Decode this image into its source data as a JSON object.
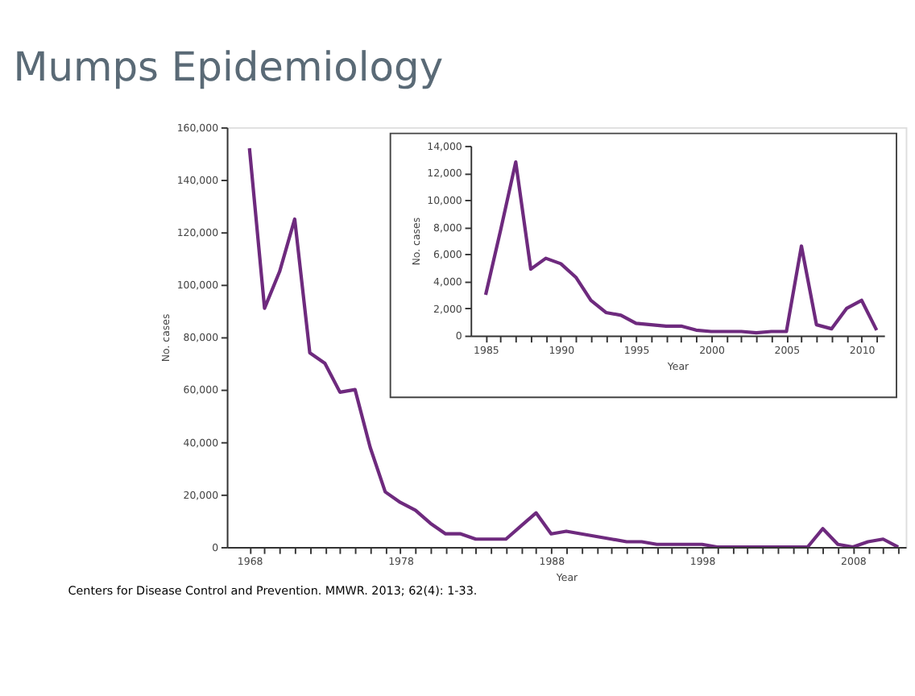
{
  "chart_data": [
    {
      "type": "line",
      "title": "Mumps Epidemiology",
      "xlabel": "Year",
      "ylabel": "No. cases",
      "annotations": [
        "Centers for Disease Control and Prevention. MMWR. 2013; 62(4): 1-33."
      ],
      "x": [
        1968,
        1969,
        1970,
        1971,
        1972,
        1973,
        1974,
        1975,
        1976,
        1977,
        1978,
        1979,
        1980,
        1981,
        1982,
        1983,
        1984,
        1985,
        1986,
        1987,
        1988,
        1989,
        1990,
        1991,
        1992,
        1993,
        1994,
        1995,
        1996,
        1997,
        1998,
        1999,
        2000,
        2001,
        2002,
        2003,
        2004,
        2005,
        2006,
        2007,
        2008,
        2009,
        2010,
        2011
      ],
      "series": [
        {
          "color": "#6e2a7e",
          "values": [
            152000,
            91000,
            105000,
            125000,
            74000,
            70000,
            59000,
            60000,
            38000,
            21000,
            17000,
            14000,
            9000,
            5000,
            5000,
            3000,
            3000,
            3000,
            8000,
            13000,
            5000,
            6000,
            5000,
            4000,
            3000,
            2000,
            2000,
            1000,
            1000,
            1000,
            1000,
            0,
            0,
            0,
            0,
            0,
            0,
            0,
            7000,
            1000,
            0,
            2000,
            3000,
            0
          ]
        }
      ],
      "xlim": [
        1966.5,
        2011.5
      ],
      "ylim": [
        0,
        160000
      ],
      "xticks": [
        1968,
        {
          "value": 1969,
          "label": null
        },
        {
          "value": 1970,
          "label": null
        },
        {
          "value": 1971,
          "label": null
        },
        {
          "value": 1972,
          "label": null
        },
        {
          "value": 1973,
          "label": null
        },
        {
          "value": 1974,
          "label": null
        },
        {
          "value": 1975,
          "label": null
        },
        {
          "value": 1976,
          "label": null
        },
        {
          "value": 1977,
          "label": null
        },
        1978,
        {
          "value": 1979,
          "label": null
        },
        {
          "value": 1980,
          "label": null
        },
        {
          "value": 1981,
          "label": null
        },
        {
          "value": 1982,
          "label": null
        },
        {
          "value": 1983,
          "label": null
        },
        {
          "value": 1984,
          "label": null
        },
        {
          "value": 1985,
          "label": null
        },
        {
          "value": 1986,
          "label": null
        },
        {
          "value": 1987,
          "label": null
        },
        1988,
        {
          "value": 1989,
          "label": null
        },
        {
          "value": 1990,
          "label": null
        },
        {
          "value": 1991,
          "label": null
        },
        {
          "value": 1992,
          "label": null
        },
        {
          "value": 1993,
          "label": null
        },
        {
          "value": 1994,
          "label": null
        },
        {
          "value": 1995,
          "label": null
        },
        {
          "value": 1996,
          "label": null
        },
        {
          "value": 1997,
          "label": null
        },
        1998,
        {
          "value": 1999,
          "label": null
        },
        {
          "value": 2000,
          "label": null
        },
        {
          "value": 2001,
          "label": null
        },
        {
          "value": 2002,
          "label": null
        },
        {
          "value": 2003,
          "label": null
        },
        {
          "value": 2004,
          "label": null
        },
        {
          "value": 2005,
          "label": null
        },
        {
          "value": 2006,
          "label": null
        },
        {
          "value": 2007,
          "label": null
        },
        2008,
        {
          "value": 2009,
          "label": null
        },
        {
          "value": 2010,
          "label": null
        },
        {
          "value": 2011,
          "label": null
        }
      ],
      "yticks": [
        0,
        {
          "value": 20000,
          "label": "20,000"
        },
        {
          "value": 40000,
          "label": "40,000"
        },
        {
          "value": 60000,
          "label": "60,000"
        },
        {
          "value": 80000,
          "label": "80,000"
        },
        {
          "value": 100000,
          "label": "100,000"
        },
        {
          "value": 120000,
          "label": "120,000"
        },
        {
          "value": 140000,
          "label": "140,000"
        },
        {
          "value": 160000,
          "label": "160,000"
        }
      ],
      "grid": false
    },
    {
      "type": "line",
      "xlabel": "Year",
      "ylabel": "No. cases",
      "x": [
        1985,
        1986,
        1987,
        1988,
        1989,
        1990,
        1991,
        1992,
        1993,
        1994,
        1995,
        1996,
        1997,
        1998,
        1999,
        2000,
        2001,
        2002,
        2003,
        2004,
        2005,
        2006,
        2007,
        2008,
        2009,
        2010,
        2011
      ],
      "series": [
        {
          "color": "#6e2a7e",
          "values": [
            3000,
            7800,
            12800,
            4900,
            5700,
            5300,
            4300,
            2600,
            1700,
            1500,
            900,
            800,
            700,
            700,
            400,
            300,
            300,
            300,
            200,
            300,
            300,
            6600,
            800,
            500,
            2000,
            2600,
            400
          ]
        }
      ],
      "xlim": [
        1984,
        2011.5
      ],
      "ylim": [
        0,
        14000
      ],
      "xticks": [
        1985,
        {
          "value": 1986,
          "label": null
        },
        {
          "value": 1987,
          "label": null
        },
        {
          "value": 1988,
          "label": null
        },
        {
          "value": 1989,
          "label": null
        },
        1990,
        {
          "value": 1991,
          "label": null
        },
        {
          "value": 1992,
          "label": null
        },
        {
          "value": 1993,
          "label": null
        },
        {
          "value": 1994,
          "label": null
        },
        1995,
        {
          "value": 1996,
          "label": null
        },
        {
          "value": 1997,
          "label": null
        },
        {
          "value": 1998,
          "label": null
        },
        {
          "value": 1999,
          "label": null
        },
        2000,
        {
          "value": 2001,
          "label": null
        },
        {
          "value": 2002,
          "label": null
        },
        {
          "value": 2003,
          "label": null
        },
        {
          "value": 2004,
          "label": null
        },
        2005,
        {
          "value": 2006,
          "label": null
        },
        {
          "value": 2007,
          "label": null
        },
        {
          "value": 2008,
          "label": null
        },
        {
          "value": 2009,
          "label": null
        },
        2010,
        {
          "value": 2011,
          "label": null
        }
      ],
      "yticks": [
        0,
        {
          "value": 2000,
          "label": "2,000"
        },
        {
          "value": 4000,
          "label": "4,000"
        },
        {
          "value": 6000,
          "label": "6,000"
        },
        {
          "value": 8000,
          "label": "8,000"
        },
        {
          "value": 10000,
          "label": "10,000"
        },
        {
          "value": 12000,
          "label": "12,000"
        },
        {
          "value": 14000,
          "label": "14,000"
        }
      ],
      "grid": false
    }
  ]
}
